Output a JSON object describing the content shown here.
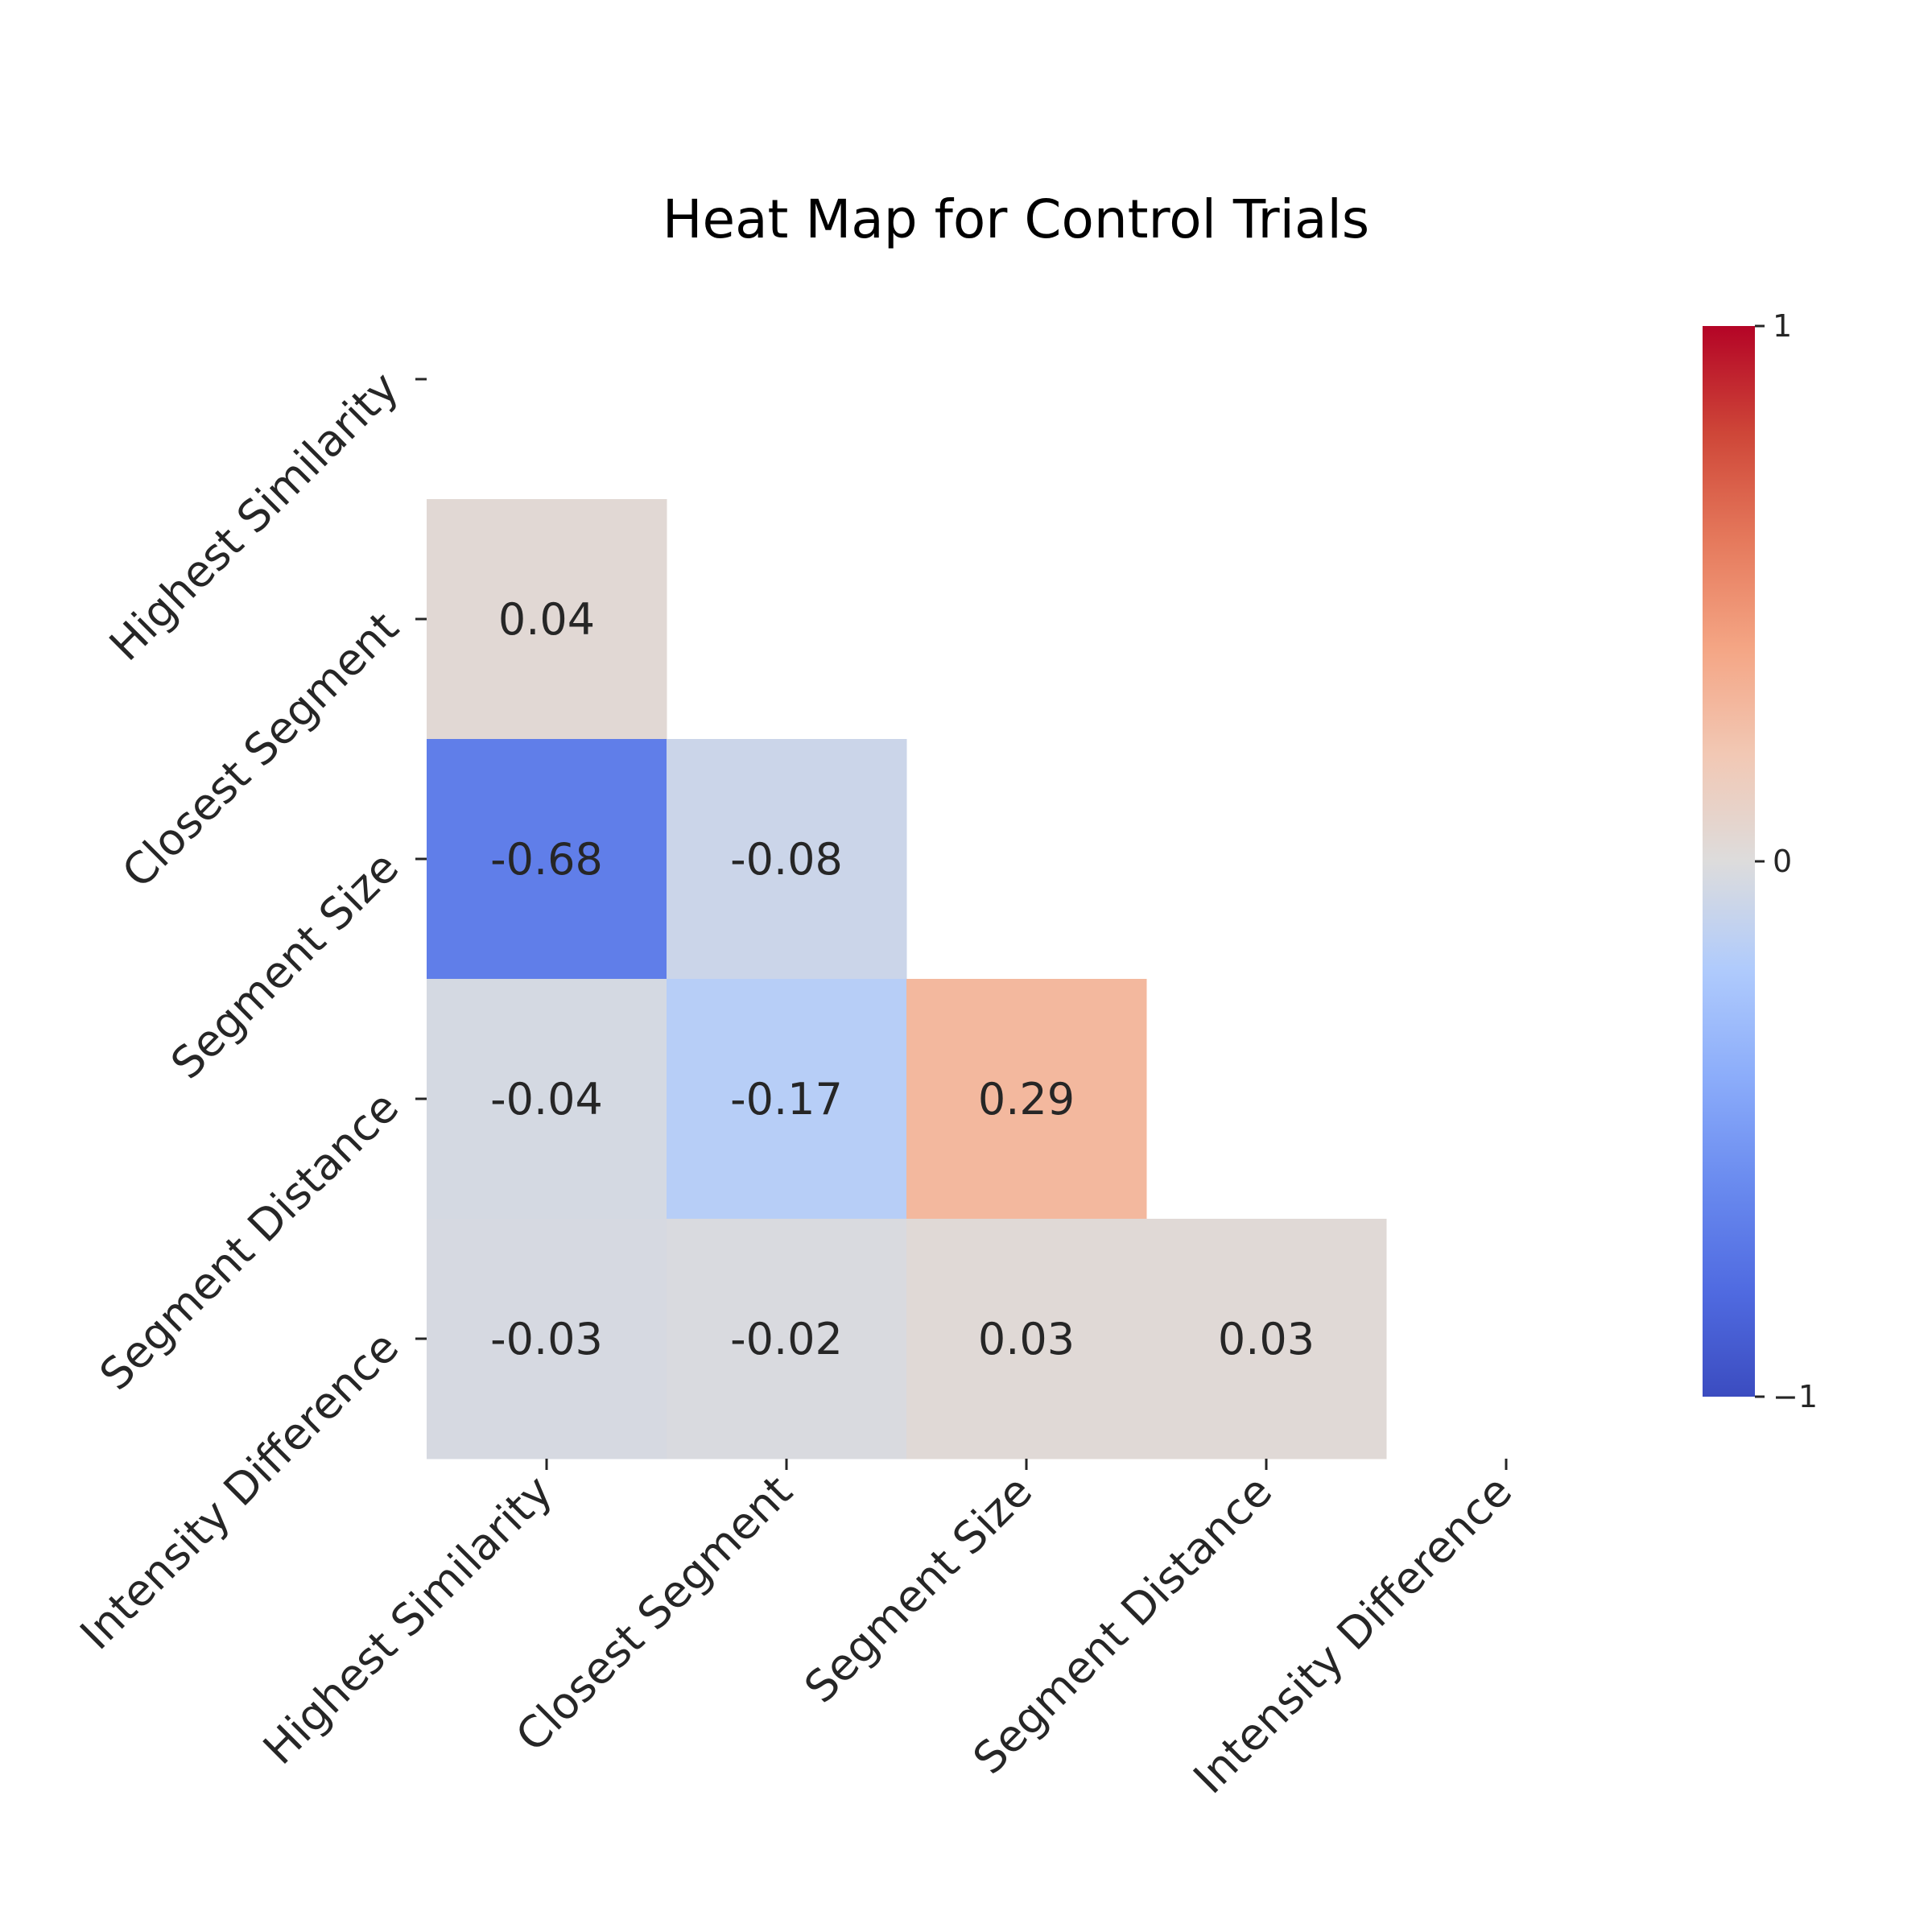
{
  "chart_data": {
    "type": "heatmap",
    "title": "Heat Map for Control Trials",
    "xlabel": "",
    "ylabel": "",
    "rows": [
      "Highest Similarity",
      "Closest Segment",
      "Segment Size",
      "Segment Distance",
      "Intensity Difference"
    ],
    "columns": [
      "Highest Similarity",
      "Closest Segment",
      "Segment Size",
      "Segment Distance",
      "Intensity Difference"
    ],
    "mask": "upper-triangle-including-diagonal",
    "values": [
      [
        null,
        null,
        null,
        null,
        null
      ],
      [
        0.04,
        null,
        null,
        null,
        null
      ],
      [
        -0.68,
        -0.08,
        null,
        null,
        null
      ],
      [
        -0.04,
        -0.17,
        0.29,
        null,
        null
      ],
      [
        -0.03,
        -0.02,
        0.03,
        0.03,
        null
      ]
    ],
    "value_labels": [
      [
        null,
        null,
        null,
        null,
        null
      ],
      [
        "0.04",
        null,
        null,
        null,
        null
      ],
      [
        "-0.68",
        "-0.08",
        null,
        null,
        null
      ],
      [
        "-0.04",
        "-0.17",
        "0.29",
        null,
        null
      ],
      [
        "-0.03",
        "-0.02",
        "0.03",
        "0.03",
        null
      ]
    ],
    "colormap": "coolwarm",
    "vmin": -1,
    "vmax": 1,
    "colorbar": {
      "ticks": [
        1,
        0,
        -1
      ],
      "tick_labels": [
        "1",
        "0",
        "−1"
      ],
      "placement": "right"
    },
    "colors": {
      "low": "#3b4cc0",
      "mid": "#dddcdc",
      "high": "#b40426",
      "dark_text": "#262626",
      "light_text": "#ffffff"
    }
  }
}
